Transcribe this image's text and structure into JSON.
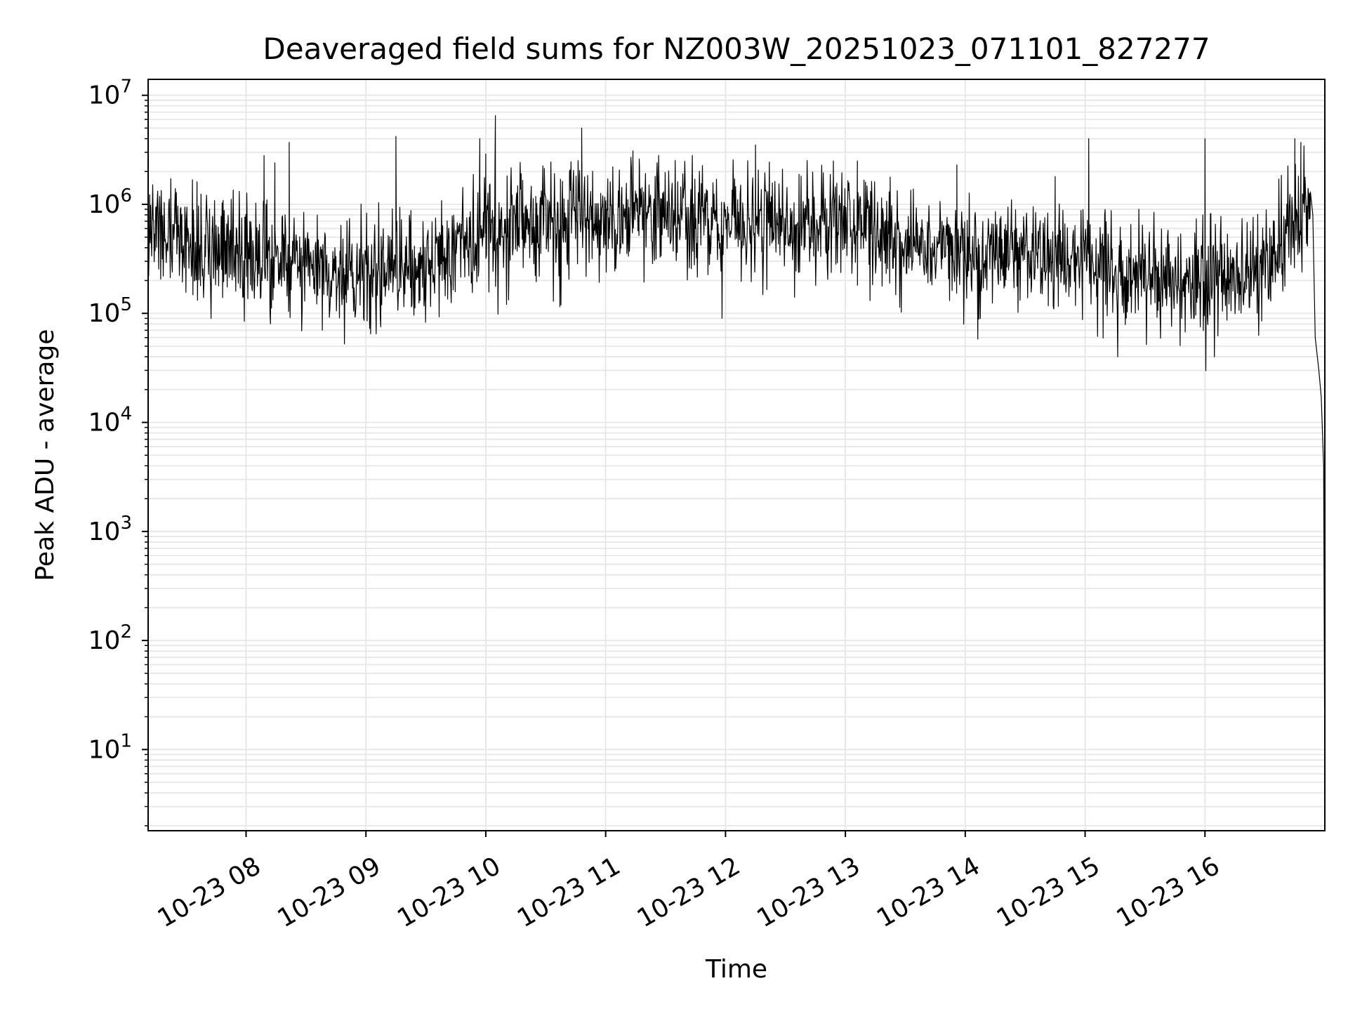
{
  "chart_data": {
    "type": "line",
    "title": "Deaveraged field sums for NZ003W_20251023_071101_827277",
    "xlabel": "Time",
    "ylabel": "Peak ADU - average",
    "yscale": "log",
    "ylim": [
      1.8,
      14000000
    ],
    "xlim_hours": [
      7.183,
      17.0
    ],
    "grid": true,
    "legend": "none",
    "x_ticks": [
      {
        "value": 8,
        "label": "10-23 08"
      },
      {
        "value": 9,
        "label": "10-23 09"
      },
      {
        "value": 10,
        "label": "10-23 10"
      },
      {
        "value": 11,
        "label": "10-23 11"
      },
      {
        "value": 12,
        "label": "10-23 12"
      },
      {
        "value": 13,
        "label": "10-23 13"
      },
      {
        "value": 14,
        "label": "10-23 14"
      },
      {
        "value": 15,
        "label": "10-23 15"
      },
      {
        "value": 16,
        "label": "10-23 16"
      }
    ],
    "y_ticks": [
      {
        "value": 10,
        "base": "10",
        "exp": "1"
      },
      {
        "value": 100,
        "base": "10",
        "exp": "2"
      },
      {
        "value": 1000,
        "base": "10",
        "exp": "3"
      },
      {
        "value": 10000,
        "base": "10",
        "exp": "4"
      },
      {
        "value": 100000,
        "base": "10",
        "exp": "5"
      },
      {
        "value": 1000000,
        "base": "10",
        "exp": "6"
      },
      {
        "value": 10000000,
        "base": "10",
        "exp": "7"
      }
    ],
    "series": [
      {
        "name": "field sums",
        "color": "#000000",
        "noise_seed": 827277,
        "sample_step_hours": 0.0042,
        "x_start_hours": 7.183,
        "noise_x_end_hours": 16.88,
        "median_profile": [
          [
            7.18,
            600000
          ],
          [
            7.4,
            500000
          ],
          [
            7.6,
            400000
          ],
          [
            8.0,
            320000
          ],
          [
            8.5,
            280000
          ],
          [
            9.0,
            250000
          ],
          [
            9.5,
            300000
          ],
          [
            9.8,
            450000
          ],
          [
            10.2,
            600000
          ],
          [
            10.7,
            650000
          ],
          [
            11.0,
            800000
          ],
          [
            11.5,
            750000
          ],
          [
            12.0,
            650000
          ],
          [
            12.5,
            600000
          ],
          [
            13.0,
            700000
          ],
          [
            13.5,
            400000
          ],
          [
            14.0,
            350000
          ],
          [
            14.5,
            330000
          ],
          [
            15.0,
            300000
          ],
          [
            15.5,
            220000
          ],
          [
            16.0,
            200000
          ],
          [
            16.5,
            280000
          ],
          [
            16.75,
            700000
          ],
          [
            16.88,
            1000000
          ]
        ],
        "spikes": [
          [
            8.15,
            2800000
          ],
          [
            8.36,
            3700000
          ],
          [
            8.24,
            2400000
          ],
          [
            9.25,
            4200000
          ],
          [
            9.95,
            4000000
          ],
          [
            10.08,
            6500000
          ],
          [
            10.0,
            2900000
          ],
          [
            10.8,
            5000000
          ],
          [
            11.28,
            2600000
          ],
          [
            12.25,
            3500000
          ],
          [
            12.9,
            2500000
          ],
          [
            13.1,
            2500000
          ],
          [
            13.93,
            2300000
          ],
          [
            15.03,
            4000000
          ],
          [
            16.0,
            4000000
          ],
          [
            16.75,
            4000000
          ],
          [
            16.8,
            3700000
          ],
          [
            14.75,
            1800000
          ]
        ],
        "tail": [
          [
            16.88,
            1300000
          ],
          [
            16.9,
            800000
          ],
          [
            16.92,
            60000
          ],
          [
            16.95,
            30000
          ],
          [
            16.97,
            17000
          ],
          [
            16.99,
            4000
          ],
          [
            17.0,
            4
          ]
        ]
      }
    ]
  }
}
